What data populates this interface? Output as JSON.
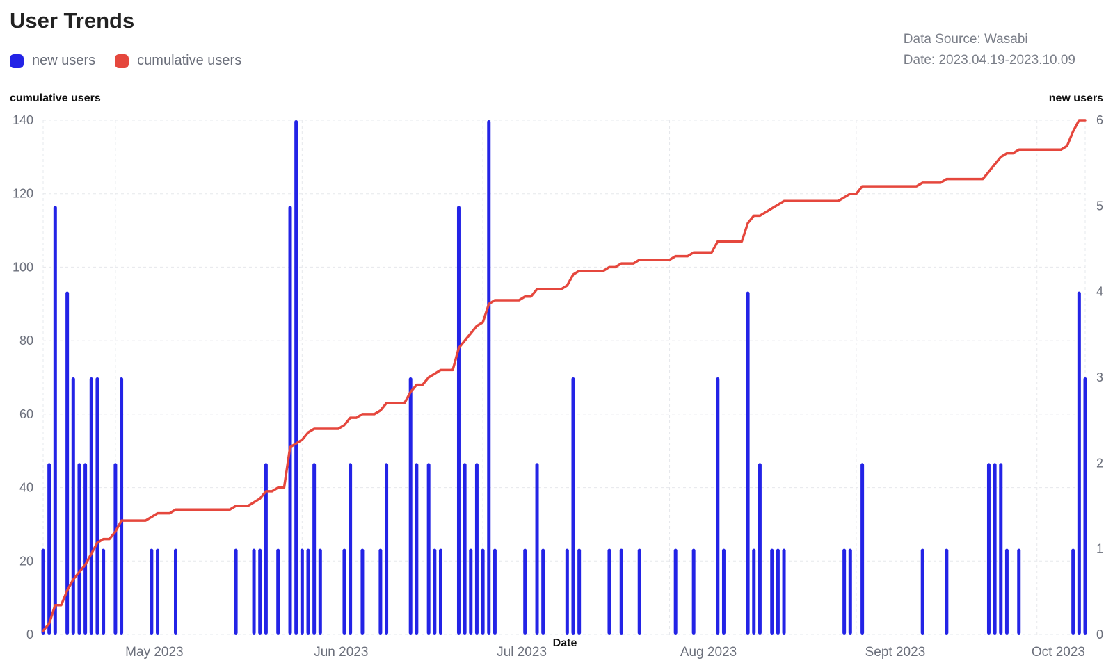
{
  "header": {
    "title": "User Trends",
    "source": "Data Source: Wasabi",
    "date_range": "Date: 2023.04.19-2023.10.09"
  },
  "legend": [
    {
      "name": "new users",
      "color": "#2323e6"
    },
    {
      "name": "cumulative users",
      "color": "#e5473d"
    }
  ],
  "chart_data": {
    "type": "bar+line",
    "xlabel": "Date",
    "ylabel_left": "cumulative users",
    "ylabel_right": "new users",
    "ylim_left": [
      0,
      140
    ],
    "ylim_right": [
      0,
      6
    ],
    "left_ticks": [
      "0",
      "20",
      "40",
      "60",
      "80",
      "100",
      "120",
      "140"
    ],
    "right_ticks": [
      "0",
      "1",
      "2",
      "3",
      "4",
      "5",
      "6"
    ],
    "x_ticks": [
      {
        "date": "2023-05-01",
        "label": "May 2023"
      },
      {
        "date": "2023-06-01",
        "label": "Jun 2023"
      },
      {
        "date": "2023-07-01",
        "label": "Jul 2023"
      },
      {
        "date": "2023-08-01",
        "label": "Aug 2023"
      },
      {
        "date": "2023-09-01",
        "label": "Sept 2023"
      },
      {
        "date": "2023-10-01",
        "label": "Oct 2023"
      }
    ],
    "x_range": [
      "2023-04-19",
      "2023-10-09"
    ],
    "grid": true,
    "series": [
      {
        "name": "new users",
        "type": "bar",
        "axis": "right",
        "color": "#2323e6",
        "points": [
          [
            "2023-04-19",
            1
          ],
          [
            "2023-04-20",
            2
          ],
          [
            "2023-04-21",
            5
          ],
          [
            "2023-04-23",
            4
          ],
          [
            "2023-04-24",
            3
          ],
          [
            "2023-04-25",
            2
          ],
          [
            "2023-04-26",
            2
          ],
          [
            "2023-04-27",
            3
          ],
          [
            "2023-04-28",
            3
          ],
          [
            "2023-04-29",
            1
          ],
          [
            "2023-05-01",
            2
          ],
          [
            "2023-05-02",
            3
          ],
          [
            "2023-05-07",
            1
          ],
          [
            "2023-05-08",
            1
          ],
          [
            "2023-05-11",
            1
          ],
          [
            "2023-05-21",
            1
          ],
          [
            "2023-05-24",
            1
          ],
          [
            "2023-05-25",
            1
          ],
          [
            "2023-05-26",
            2
          ],
          [
            "2023-05-28",
            1
          ],
          [
            "2023-05-30",
            5
          ],
          [
            "2023-05-31",
            6
          ],
          [
            "2023-06-01",
            1
          ],
          [
            "2023-06-02",
            1
          ],
          [
            "2023-06-03",
            2
          ],
          [
            "2023-06-04",
            1
          ],
          [
            "2023-06-08",
            1
          ],
          [
            "2023-06-09",
            2
          ],
          [
            "2023-06-11",
            1
          ],
          [
            "2023-06-14",
            1
          ],
          [
            "2023-06-15",
            2
          ],
          [
            "2023-06-19",
            3
          ],
          [
            "2023-06-20",
            2
          ],
          [
            "2023-06-22",
            2
          ],
          [
            "2023-06-23",
            1
          ],
          [
            "2023-06-24",
            1
          ],
          [
            "2023-06-27",
            5
          ],
          [
            "2023-06-28",
            2
          ],
          [
            "2023-06-29",
            1
          ],
          [
            "2023-06-30",
            2
          ],
          [
            "2023-07-01",
            1
          ],
          [
            "2023-07-02",
            6
          ],
          [
            "2023-07-03",
            1
          ],
          [
            "2023-07-08",
            1
          ],
          [
            "2023-07-10",
            2
          ],
          [
            "2023-07-11",
            1
          ],
          [
            "2023-07-15",
            1
          ],
          [
            "2023-07-16",
            3
          ],
          [
            "2023-07-17",
            1
          ],
          [
            "2023-07-22",
            1
          ],
          [
            "2023-07-24",
            1
          ],
          [
            "2023-07-27",
            1
          ],
          [
            "2023-08-02",
            1
          ],
          [
            "2023-08-05",
            1
          ],
          [
            "2023-08-09",
            3
          ],
          [
            "2023-08-10",
            1
          ],
          [
            "2023-08-14",
            4
          ],
          [
            "2023-08-15",
            1
          ],
          [
            "2023-08-16",
            2
          ],
          [
            "2023-08-18",
            1
          ],
          [
            "2023-08-19",
            1
          ],
          [
            "2023-08-20",
            1
          ],
          [
            "2023-08-30",
            1
          ],
          [
            "2023-08-31",
            1
          ],
          [
            "2023-09-02",
            2
          ],
          [
            "2023-09-12",
            1
          ],
          [
            "2023-09-16",
            1
          ],
          [
            "2023-09-23",
            2
          ],
          [
            "2023-09-24",
            2
          ],
          [
            "2023-09-25",
            2
          ],
          [
            "2023-09-26",
            1
          ],
          [
            "2023-09-28",
            1
          ],
          [
            "2023-10-07",
            1
          ],
          [
            "2023-10-08",
            4
          ],
          [
            "2023-10-09",
            3
          ]
        ]
      },
      {
        "name": "cumulative users",
        "type": "line",
        "axis": "left",
        "color": "#e5473d",
        "points": [
          [
            "2023-04-19",
            1
          ],
          [
            "2023-04-20",
            3
          ],
          [
            "2023-04-21",
            8
          ],
          [
            "2023-04-22",
            8
          ],
          [
            "2023-04-23",
            12
          ],
          [
            "2023-04-24",
            15
          ],
          [
            "2023-04-25",
            17
          ],
          [
            "2023-04-26",
            19
          ],
          [
            "2023-04-27",
            22
          ],
          [
            "2023-04-28",
            25
          ],
          [
            "2023-04-29",
            26
          ],
          [
            "2023-04-30",
            26
          ],
          [
            "2023-05-01",
            28
          ],
          [
            "2023-05-02",
            31
          ],
          [
            "2023-05-06",
            31
          ],
          [
            "2023-05-07",
            32
          ],
          [
            "2023-05-08",
            33
          ],
          [
            "2023-05-10",
            33
          ],
          [
            "2023-05-11",
            34
          ],
          [
            "2023-05-20",
            34
          ],
          [
            "2023-05-21",
            35
          ],
          [
            "2023-05-23",
            35
          ],
          [
            "2023-05-24",
            36
          ],
          [
            "2023-05-25",
            37
          ],
          [
            "2023-05-26",
            39
          ],
          [
            "2023-05-27",
            39
          ],
          [
            "2023-05-28",
            40
          ],
          [
            "2023-05-29",
            40
          ],
          [
            "2023-05-30",
            51
          ],
          [
            "2023-05-31",
            52
          ],
          [
            "2023-06-01",
            53
          ],
          [
            "2023-06-02",
            55
          ],
          [
            "2023-06-03",
            56
          ],
          [
            "2023-06-07",
            56
          ],
          [
            "2023-06-08",
            57
          ],
          [
            "2023-06-09",
            59
          ],
          [
            "2023-06-10",
            59
          ],
          [
            "2023-06-11",
            60
          ],
          [
            "2023-06-13",
            60
          ],
          [
            "2023-06-14",
            61
          ],
          [
            "2023-06-15",
            63
          ],
          [
            "2023-06-18",
            63
          ],
          [
            "2023-06-19",
            66
          ],
          [
            "2023-06-20",
            68
          ],
          [
            "2023-06-21",
            68
          ],
          [
            "2023-06-22",
            70
          ],
          [
            "2023-06-23",
            71
          ],
          [
            "2023-06-24",
            72
          ],
          [
            "2023-06-26",
            72
          ],
          [
            "2023-06-27",
            78
          ],
          [
            "2023-06-28",
            80
          ],
          [
            "2023-06-29",
            82
          ],
          [
            "2023-06-30",
            84
          ],
          [
            "2023-07-01",
            85
          ],
          [
            "2023-07-02",
            90
          ],
          [
            "2023-07-03",
            91
          ],
          [
            "2023-07-07",
            91
          ],
          [
            "2023-07-08",
            92
          ],
          [
            "2023-07-09",
            92
          ],
          [
            "2023-07-10",
            94
          ],
          [
            "2023-07-11",
            94
          ],
          [
            "2023-07-14",
            94
          ],
          [
            "2023-07-15",
            95
          ],
          [
            "2023-07-16",
            98
          ],
          [
            "2023-07-17",
            99
          ],
          [
            "2023-07-21",
            99
          ],
          [
            "2023-07-22",
            100
          ],
          [
            "2023-07-23",
            100
          ],
          [
            "2023-07-24",
            101
          ],
          [
            "2023-07-26",
            101
          ],
          [
            "2023-07-27",
            102
          ],
          [
            "2023-08-01",
            102
          ],
          [
            "2023-08-02",
            103
          ],
          [
            "2023-08-04",
            103
          ],
          [
            "2023-08-05",
            104
          ],
          [
            "2023-08-08",
            104
          ],
          [
            "2023-08-09",
            107
          ],
          [
            "2023-08-13",
            107
          ],
          [
            "2023-08-14",
            112
          ],
          [
            "2023-08-15",
            114
          ],
          [
            "2023-08-16",
            114
          ],
          [
            "2023-08-17",
            115
          ],
          [
            "2023-08-18",
            116
          ],
          [
            "2023-08-19",
            117
          ],
          [
            "2023-08-20",
            118
          ],
          [
            "2023-08-29",
            118
          ],
          [
            "2023-08-30",
            119
          ],
          [
            "2023-08-31",
            120
          ],
          [
            "2023-09-01",
            120
          ],
          [
            "2023-09-02",
            122
          ],
          [
            "2023-09-11",
            122
          ],
          [
            "2023-09-12",
            123
          ],
          [
            "2023-09-15",
            123
          ],
          [
            "2023-09-16",
            124
          ],
          [
            "2023-09-22",
            124
          ],
          [
            "2023-09-23",
            126
          ],
          [
            "2023-09-24",
            128
          ],
          [
            "2023-09-25",
            130
          ],
          [
            "2023-09-26",
            131
          ],
          [
            "2023-09-27",
            131
          ],
          [
            "2023-09-28",
            132
          ],
          [
            "2023-10-05",
            132
          ],
          [
            "2023-10-06",
            133
          ],
          [
            "2023-10-07",
            137
          ],
          [
            "2023-10-08",
            140
          ],
          [
            "2023-10-09",
            140
          ]
        ]
      }
    ]
  }
}
